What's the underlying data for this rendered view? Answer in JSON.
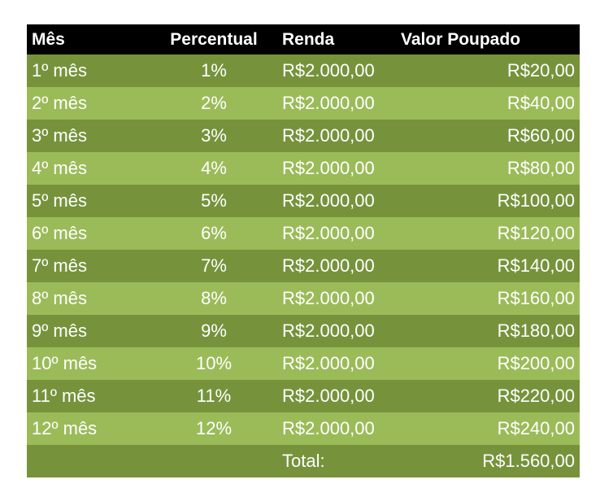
{
  "table": {
    "headers": {
      "month": "Mês",
      "percent": "Percentual",
      "income": "Renda",
      "saved": "Valor Poupado"
    },
    "rows": [
      {
        "month": "1º mês",
        "percent": "1%",
        "income": "R$2.000,00",
        "saved": "R$20,00"
      },
      {
        "month": "2º mês",
        "percent": "2%",
        "income": "R$2.000,00",
        "saved": "R$40,00"
      },
      {
        "month": "3º mês",
        "percent": "3%",
        "income": "R$2.000,00",
        "saved": "R$60,00"
      },
      {
        "month": "4º mês",
        "percent": "4%",
        "income": "R$2.000,00",
        "saved": "R$80,00"
      },
      {
        "month": "5º mês",
        "percent": "5%",
        "income": "R$2.000,00",
        "saved": "R$100,00"
      },
      {
        "month": "6º mês",
        "percent": "6%",
        "income": "R$2.000,00",
        "saved": "R$120,00"
      },
      {
        "month": "7º mês",
        "percent": "7%",
        "income": "R$2.000,00",
        "saved": "R$140,00"
      },
      {
        "month": "8º mês",
        "percent": "8%",
        "income": "R$2.000,00",
        "saved": "R$160,00"
      },
      {
        "month": "9º mês",
        "percent": "9%",
        "income": "R$2.000,00",
        "saved": "R$180,00"
      },
      {
        "month": "10º mês",
        "percent": "10%",
        "income": "R$2.000,00",
        "saved": "R$200,00"
      },
      {
        "month": "11º mês",
        "percent": "11%",
        "income": "R$2.000,00",
        "saved": "R$220,00"
      },
      {
        "month": "12º mês",
        "percent": "12%",
        "income": "R$2.000,00",
        "saved": "R$240,00"
      }
    ],
    "total": {
      "label": "Total:",
      "value": "R$1.560,00"
    }
  },
  "colors": {
    "header_bg": "#000000",
    "row_dark": "#76933c",
    "row_light": "#9bbb59",
    "text": "#ffffff"
  }
}
